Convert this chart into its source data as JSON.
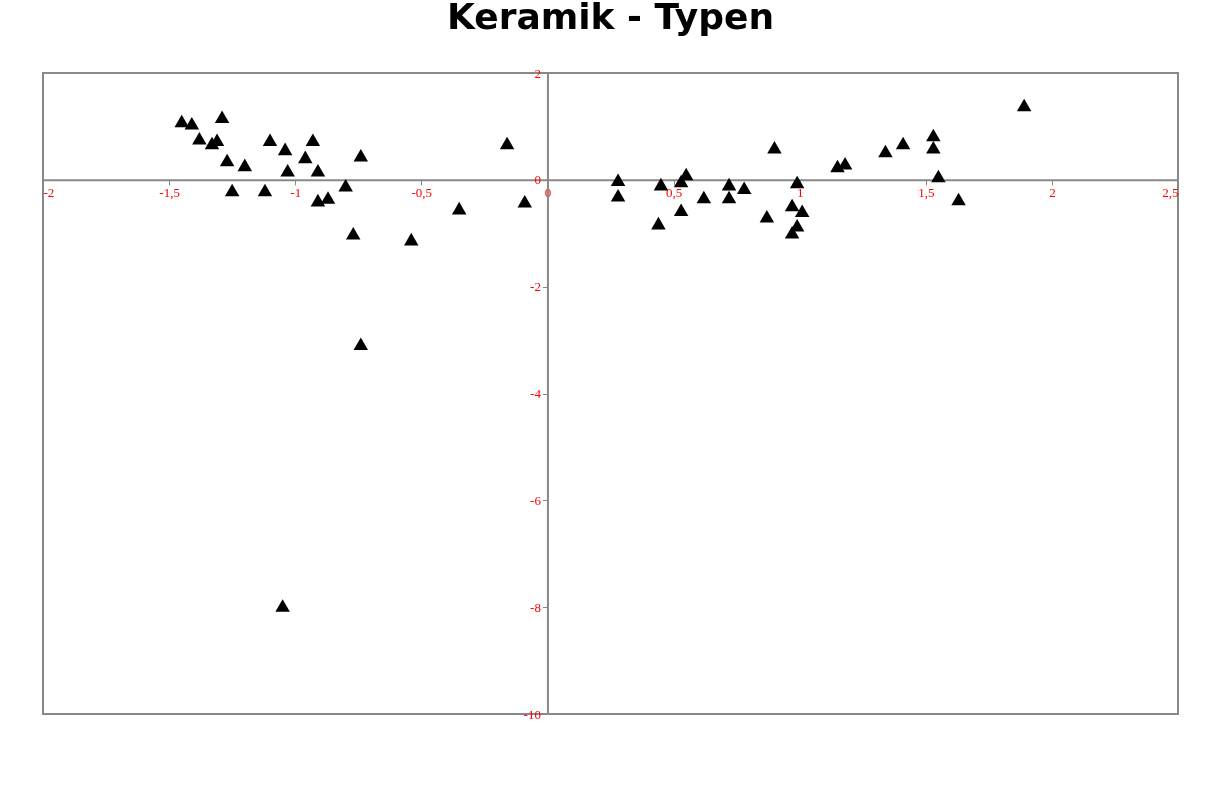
{
  "chart_data": {
    "type": "scatter",
    "title": "Keramik - Typen",
    "marker": "triangle",
    "grid": false,
    "series": [
      {
        "color": "#000000",
        "x": [
          -1.45,
          -1.41,
          -1.29,
          -1.38,
          -1.33,
          -1.31,
          -1.27,
          -1.2,
          -1.25,
          -1.12,
          -1.1,
          -1.04,
          -1.03,
          -0.93,
          -0.96,
          -0.91,
          -0.91,
          -0.87,
          -0.8,
          -0.74,
          -0.77,
          -0.74,
          -1.05,
          -0.54,
          -0.35,
          -0.16,
          -0.09,
          0.28,
          0.28,
          0.45,
          0.44,
          0.53,
          0.55,
          0.53,
          0.62,
          0.72,
          0.72,
          0.78,
          0.9,
          0.87,
          0.99,
          0.97,
          1.01,
          0.99,
          0.97,
          1.15,
          1.18,
          1.34,
          1.41,
          1.53,
          1.53,
          1.55,
          1.63,
          1.89
        ],
        "values": [
          1.1,
          1.06,
          1.18,
          0.78,
          0.69,
          0.75,
          0.37,
          0.28,
          -0.19,
          -0.19,
          0.75,
          0.58,
          0.18,
          0.75,
          0.43,
          0.18,
          -0.38,
          -0.33,
          -0.1,
          0.46,
          -1.0,
          -3.07,
          -7.97,
          -1.11,
          -0.53,
          0.69,
          -0.4,
          0.0,
          -0.29,
          -0.08,
          -0.81,
          -0.02,
          0.11,
          -0.56,
          -0.32,
          -0.08,
          -0.32,
          -0.15,
          0.61,
          -0.68,
          -0.04,
          -0.47,
          -0.58,
          -0.85,
          -0.98,
          0.26,
          0.31,
          0.54,
          0.69,
          0.84,
          0.61,
          0.07,
          -0.36,
          1.4
        ]
      }
    ],
    "xlim": [
      -2,
      2.5
    ],
    "xticks": [
      -2,
      {
        "value": -1.5,
        "label": "-1,5"
      },
      -1,
      {
        "value": -0.5,
        "label": "-0,5"
      },
      0,
      {
        "value": 0.5,
        "label": "0,5"
      },
      1,
      {
        "value": 1.5,
        "label": "1,5"
      },
      2,
      {
        "value": 2.5,
        "label": "2,5"
      }
    ],
    "ylim": [
      -10,
      2
    ],
    "yticks": [
      -10,
      -8,
      -6,
      -4,
      -2,
      0,
      2
    ]
  }
}
